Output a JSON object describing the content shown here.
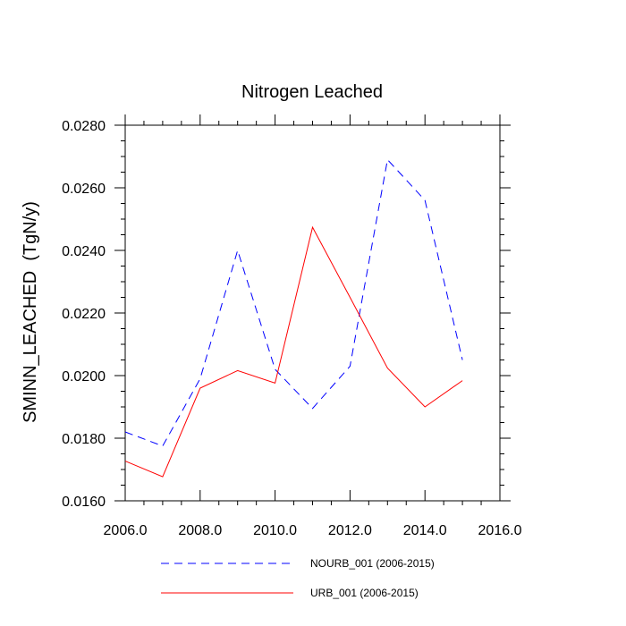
{
  "chart_data": {
    "type": "line",
    "title": "Nitrogen Leached",
    "xlabel": "",
    "ylabel": "SMINN_LEACHED  (TgN/y)",
    "xlim": [
      2006.0,
      2016.0
    ],
    "ylim": [
      0.016,
      0.028
    ],
    "x_ticks": [
      "2006.0",
      "2008.0",
      "2010.0",
      "2012.0",
      "2014.0",
      "2016.0"
    ],
    "y_ticks": [
      "0.0160",
      "0.0180",
      "0.0200",
      "0.0220",
      "0.0240",
      "0.0260",
      "0.0280"
    ],
    "x": [
      2006,
      2007,
      2008,
      2009,
      2010,
      2011,
      2012,
      2013,
      2014,
      2015
    ],
    "series": [
      {
        "name": "NOURB_001 (2006-2015)",
        "color": "#0000ff",
        "dash": "dashed",
        "values": [
          0.0182,
          0.01775,
          0.0199,
          0.024,
          0.0202,
          0.01895,
          0.0203,
          0.0269,
          0.0256,
          0.0205
        ]
      },
      {
        "name": "URB_001 (2006-2015)",
        "color": "#ff0000",
        "dash": "solid",
        "values": [
          0.01727,
          0.01677,
          0.0196,
          0.02016,
          0.01976,
          0.02474,
          0.0225,
          0.02024,
          0.019,
          0.01984
        ]
      }
    ],
    "grid": false,
    "legend_position": "bottom"
  }
}
